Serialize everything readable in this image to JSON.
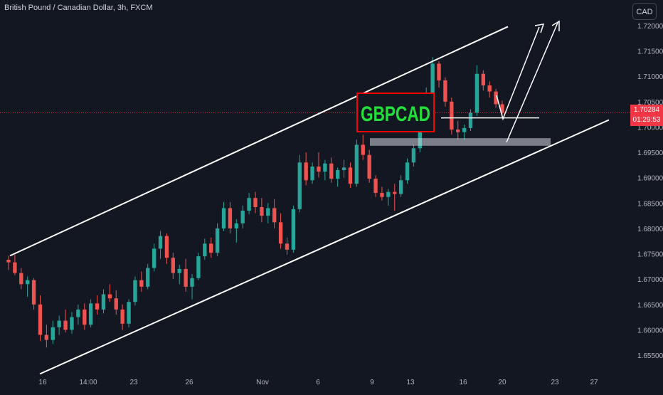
{
  "header": {
    "symbol_title": "British Pound / Canadian Dollar, 3h, FXCM",
    "currency_button": "CAD"
  },
  "price_tag": {
    "price": "1.70284",
    "countdown": "01:29:53"
  },
  "annotation": {
    "label": "GBPCAD"
  },
  "colors": {
    "background": "#131722",
    "up": "#26a69a",
    "down": "#ef5350",
    "price_line": "#f23645",
    "annotation_border": "#ff0000",
    "annotation_text": "#22e03a"
  },
  "chart_data": {
    "type": "candlestick",
    "title": "British Pound / Canadian Dollar, 3h, FXCM",
    "ylim": [
      1.6513,
      1.7213
    ],
    "y_ticks": [
      "1.72000",
      "1.71500",
      "1.71000",
      "1.70500",
      "1.70000",
      "1.69500",
      "1.69000",
      "1.68500",
      "1.68000",
      "1.67500",
      "1.67000",
      "1.66500",
      "1.66000",
      "1.65500"
    ],
    "x_ticks": [
      "16",
      "14:00",
      "23",
      "26",
      "Nov",
      "6",
      "9",
      "13",
      "16",
      "20",
      "23",
      "27"
    ],
    "last_price": 1.70284,
    "grid": false,
    "candles_approx": [
      [
        1.6738,
        1.6746,
        1.6718,
        1.6733
      ],
      [
        1.6733,
        1.6748,
        1.6708,
        1.6712
      ],
      [
        1.6712,
        1.6722,
        1.668,
        1.669
      ],
      [
        1.669,
        1.6705,
        1.6665,
        1.6698
      ],
      [
        1.6698,
        1.6702,
        1.664,
        1.665
      ],
      [
        1.665,
        1.6668,
        1.6578,
        1.659
      ],
      [
        1.659,
        1.661,
        1.6565,
        1.658
      ],
      [
        1.658,
        1.6618,
        1.6572,
        1.6605
      ],
      [
        1.6605,
        1.6628,
        1.659,
        1.6618
      ],
      [
        1.6618,
        1.664,
        1.6595,
        1.66
      ],
      [
        1.66,
        1.6635,
        1.6592,
        1.6625
      ],
      [
        1.6625,
        1.665,
        1.661,
        1.664
      ],
      [
        1.664,
        1.6652,
        1.66,
        1.661
      ],
      [
        1.661,
        1.666,
        1.6605,
        1.6652
      ],
      [
        1.6652,
        1.6668,
        1.663,
        1.664
      ],
      [
        1.664,
        1.668,
        1.6632,
        1.667
      ],
      [
        1.667,
        1.669,
        1.6655,
        1.6662
      ],
      [
        1.6662,
        1.6678,
        1.663,
        1.664
      ],
      [
        1.664,
        1.665,
        1.66,
        1.6612
      ],
      [
        1.6612,
        1.666,
        1.6605,
        1.6655
      ],
      [
        1.6655,
        1.6705,
        1.6648,
        1.6698
      ],
      [
        1.6698,
        1.6715,
        1.6675,
        1.6685
      ],
      [
        1.6685,
        1.673,
        1.668,
        1.6722
      ],
      [
        1.6722,
        1.677,
        1.6715,
        1.676
      ],
      [
        1.676,
        1.6795,
        1.674,
        1.6785
      ],
      [
        1.6785,
        1.679,
        1.673,
        1.6742
      ],
      [
        1.6742,
        1.6752,
        1.67,
        1.6712
      ],
      [
        1.6712,
        1.6728,
        1.669,
        1.672
      ],
      [
        1.672,
        1.674,
        1.6675,
        1.6685
      ],
      [
        1.6685,
        1.671,
        1.666,
        1.6702
      ],
      [
        1.6702,
        1.6752,
        1.6698,
        1.6745
      ],
      [
        1.6745,
        1.678,
        1.6738,
        1.677
      ],
      [
        1.677,
        1.6782,
        1.6742,
        1.6752
      ],
      [
        1.6752,
        1.681,
        1.6745,
        1.68
      ],
      [
        1.68,
        1.6852,
        1.6795,
        1.684
      ],
      [
        1.684,
        1.6852,
        1.679,
        1.68
      ],
      [
        1.68,
        1.6818,
        1.6772,
        1.681
      ],
      [
        1.681,
        1.6845,
        1.68,
        1.6835
      ],
      [
        1.6835,
        1.687,
        1.6828,
        1.686
      ],
      [
        1.686,
        1.6872,
        1.683,
        1.6842
      ],
      [
        1.6842,
        1.686,
        1.6812,
        1.6825
      ],
      [
        1.6825,
        1.685,
        1.681,
        1.684
      ],
      [
        1.684,
        1.6858,
        1.68,
        1.6812
      ],
      [
        1.6812,
        1.683,
        1.676,
        1.677
      ],
      [
        1.677,
        1.6782,
        1.6748,
        1.6758
      ],
      [
        1.6758,
        1.6845,
        1.6752,
        1.6838
      ],
      [
        1.6838,
        1.6945,
        1.6832,
        1.693
      ],
      [
        1.693,
        1.695,
        1.6885,
        1.6895
      ],
      [
        1.6895,
        1.693,
        1.6888,
        1.6922
      ],
      [
        1.6922,
        1.695,
        1.69,
        1.6912
      ],
      [
        1.6912,
        1.6935,
        1.6895,
        1.6928
      ],
      [
        1.6928,
        1.694,
        1.689,
        1.6898
      ],
      [
        1.6898,
        1.692,
        1.6882,
        1.6915
      ],
      [
        1.6915,
        1.6935,
        1.69,
        1.692
      ],
      [
        1.692,
        1.693,
        1.688,
        1.6888
      ],
      [
        1.6888,
        1.6975,
        1.6882,
        1.6965
      ],
      [
        1.6965,
        1.6985,
        1.6935,
        1.6945
      ],
      [
        1.6945,
        1.6955,
        1.689,
        1.6898
      ],
      [
        1.6898,
        1.6905,
        1.6862,
        1.687
      ],
      [
        1.687,
        1.6882,
        1.6855,
        1.6862
      ],
      [
        1.6862,
        1.6878,
        1.6845,
        1.6872
      ],
      [
        1.6872,
        1.6888,
        1.6835,
        1.6868
      ],
      [
        1.6868,
        1.6905,
        1.6862,
        1.6895
      ],
      [
        1.6895,
        1.6938,
        1.6888,
        1.693
      ],
      [
        1.693,
        1.6965,
        1.6922,
        1.6958
      ],
      [
        1.6958,
        1.7002,
        1.695,
        1.6995
      ],
      [
        1.6995,
        1.7078,
        1.699,
        1.7065
      ],
      [
        1.7065,
        1.7138,
        1.7055,
        1.7125
      ],
      [
        1.7125,
        1.713,
        1.7078,
        1.7092
      ],
      [
        1.7092,
        1.7098,
        1.704,
        1.705
      ],
      [
        1.705,
        1.7058,
        1.6985,
        1.6995
      ],
      [
        1.6995,
        1.7012,
        1.6975,
        1.699
      ],
      [
        1.699,
        1.7005,
        1.6975,
        1.6998
      ],
      [
        1.6998,
        1.7035,
        1.6992,
        1.7028
      ],
      [
        1.7028,
        1.7122,
        1.7022,
        1.7105
      ],
      [
        1.7105,
        1.7112,
        1.7072,
        1.7082
      ],
      [
        1.7082,
        1.709,
        1.7058,
        1.707
      ],
      [
        1.707,
        1.7075,
        1.7038,
        1.7045
      ],
      [
        1.7045,
        1.7052,
        1.7022,
        1.7028
      ]
    ],
    "annotations": {
      "channel_upper": [
        [
          1.6746,
          "start"
        ],
        [
          1.7198,
          "end"
        ]
      ],
      "channel_lower": [
        [
          1.6513,
          "start"
        ],
        [
          1.7014,
          "end"
        ]
      ],
      "support_zone": [
        1.6963,
        1.6978
      ],
      "resistance_line": 1.7018
    }
  }
}
